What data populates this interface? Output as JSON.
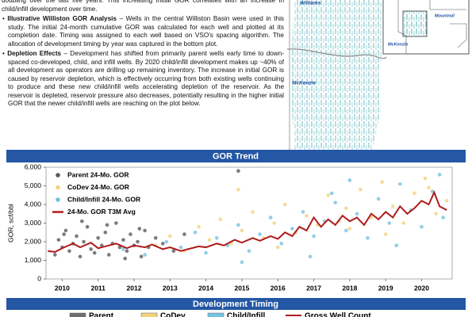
{
  "text": {
    "paragraphs": [
      {
        "body": "doubling over the last five years. This increasing initial GOR correlates with an increase in child/infill development over time."
      },
      {
        "heading": "Illustrative Williston GOR Analysis",
        "body": "– Wells in the central Williston Basin were used in this study. The initial 24-month cumulative GOR was calculated for each well and plotted at its completion date. Timing was assigned to each well based on VSO's spacing algorithm. The allocation of development timing by year was captured in the bottom plot."
      },
      {
        "heading": "Depletion Effects",
        "body": "– Development has shifted from primarily parent wells early time to down-spaced co-developed, child, and infill wells. By 2020 child/infill development makes up ~40% of all development as operators are drilling up remaining inventory. The increase in initial GOR is caused by reservoir depletion, which is effectively occurring from both existing wells continuing to produce and these new child/infill wells accelerating depletion of the reservoir. As the reservoir is depleted, reservoir pressure also decreases, potentially resulting in the higher initial GOR that the newer child/infill wells are reaching on the plot below."
      }
    ]
  },
  "map": {
    "labels": [
      "Williams",
      "McKenzie"
    ],
    "inset_labels": [
      "Mountrail",
      "McKenzie"
    ]
  },
  "chart_data": {
    "type": "scatter",
    "title": "GOR Trend",
    "y_label": "GOR, scf/bbl",
    "xlim": [
      2009.55,
      2020.85
    ],
    "xticks": [
      2010,
      2011,
      2012,
      2013,
      2014,
      2015,
      2016,
      2017,
      2018,
      2019,
      2020
    ],
    "ylim": [
      0,
      6000
    ],
    "yticks": [
      0,
      {
        "value": 1000,
        "label": "1,000"
      },
      {
        "value": 2000,
        "label": "2,000"
      },
      {
        "value": 3000,
        "label": "3,000"
      },
      {
        "value": 4000,
        "label": "4,000"
      },
      {
        "value": 5000,
        "label": "5,000"
      },
      {
        "value": 6000,
        "label": "6,000"
      }
    ],
    "grid": false,
    "legend": "upper-left",
    "series": [
      {
        "name": "Parent 24-Mo. GOR",
        "type": "scatter",
        "color": "#5a5a5a",
        "x": [
          2009.8,
          2009.9,
          2010.0,
          2010.1,
          2010.2,
          2010.3,
          2010.4,
          2010.5,
          2010.6,
          2010.7,
          2010.8,
          2010.9,
          2011.0,
          2011.1,
          2011.2,
          2011.3,
          2011.4,
          2011.5,
          2011.6,
          2011.7,
          2011.8,
          2011.9,
          2012.0,
          2012.1,
          2012.2,
          2012.3,
          2012.4,
          2012.6,
          2012.8,
          2013.1,
          2013.4,
          2010.05,
          2010.55,
          2011.25,
          2011.75,
          2012.15,
          2014.9
        ],
        "values": [
          1300,
          2100,
          1700,
          2600,
          1500,
          1900,
          2300,
          1200,
          2000,
          2800,
          1600,
          1400,
          2200,
          1800,
          2500,
          1300,
          1900,
          3000,
          1700,
          2100,
          1500,
          2400,
          1800,
          2000,
          1200,
          2600,
          1700,
          2200,
          1900,
          1500,
          2400,
          2400,
          3100,
          2900,
          1100,
          2700,
          5800
        ]
      },
      {
        "name": "CoDev 24-Mo. GOR",
        "type": "scatter",
        "color": "#f3d27e",
        "x": [
          2012.6,
          2013.0,
          2013.4,
          2013.8,
          2014.1,
          2014.4,
          2014.7,
          2015.0,
          2015.3,
          2015.6,
          2015.9,
          2016.2,
          2016.5,
          2016.8,
          2017.1,
          2017.4,
          2017.7,
          2018.0,
          2018.3,
          2018.6,
          2018.9,
          2019.2,
          2019.5,
          2019.8,
          2020.1,
          2020.4,
          2020.7,
          2014.9,
          2016.0,
          2017.9,
          2019.0,
          2020.2
        ],
        "values": [
          1800,
          2300,
          1500,
          2800,
          2100,
          3200,
          1900,
          2600,
          3600,
          2200,
          3000,
          4000,
          2500,
          3400,
          2900,
          4500,
          3100,
          2700,
          4800,
          3300,
          5200,
          3900,
          3000,
          4600,
          5400,
          3500,
          4200,
          4800,
          1700,
          3800,
          2400,
          4900
        ]
      },
      {
        "name": "Child/Infill 24-Mo. GOR",
        "type": "scatter",
        "color": "#74c3e0",
        "x": [
          2011.7,
          2012.3,
          2012.9,
          2013.3,
          2013.7,
          2014.0,
          2014.3,
          2014.6,
          2014.9,
          2015.2,
          2015.5,
          2015.8,
          2016.1,
          2016.4,
          2016.7,
          2017.0,
          2017.3,
          2017.6,
          2017.9,
          2018.2,
          2018.5,
          2018.8,
          2019.1,
          2019.4,
          2019.7,
          2020.0,
          2020.3,
          2020.6,
          2015.0,
          2016.9,
          2018.0,
          2019.3,
          2020.5,
          2017.5
        ],
        "values": [
          1600,
          1300,
          2000,
          1700,
          2500,
          1400,
          2200,
          1800,
          2900,
          1500,
          2400,
          3300,
          1900,
          2700,
          3600,
          2300,
          3100,
          4100,
          2600,
          3500,
          2200,
          4300,
          3000,
          5100,
          3700,
          2800,
          4700,
          3300,
          900,
          1200,
          5300,
          1800,
          5600,
          4600
        ]
      },
      {
        "name": "24-Mo. GOR T3M Avg",
        "type": "line",
        "color": "#b01c1c",
        "x": [
          2009.6,
          2009.8,
          2010.0,
          2010.3,
          2010.5,
          2010.8,
          2011.0,
          2011.3,
          2011.5,
          2011.8,
          2012.0,
          2012.3,
          2012.5,
          2012.8,
          2013.0,
          2013.3,
          2013.5,
          2013.8,
          2014.0,
          2014.3,
          2014.5,
          2014.8,
          2015.0,
          2015.3,
          2015.5,
          2015.8,
          2016.0,
          2016.2,
          2016.4,
          2016.6,
          2016.8,
          2017.0,
          2017.2,
          2017.4,
          2017.6,
          2017.8,
          2018.0,
          2018.2,
          2018.4,
          2018.6,
          2018.8,
          2019.0,
          2019.2,
          2019.4,
          2019.6,
          2019.8,
          2020.0,
          2020.2,
          2020.35,
          2020.5,
          2020.7
        ],
        "values": [
          1500,
          1450,
          1650,
          1900,
          1700,
          1950,
          1650,
          1800,
          1900,
          1650,
          1800,
          1700,
          1850,
          1600,
          1700,
          1500,
          1600,
          1750,
          1700,
          1900,
          1800,
          2100,
          1950,
          2200,
          2050,
          2300,
          2150,
          2500,
          2300,
          2800,
          2600,
          3300,
          2800,
          3200,
          2900,
          3400,
          3100,
          3300,
          2900,
          3500,
          3200,
          3600,
          3300,
          3900,
          3500,
          3800,
          4200,
          4000,
          4650,
          3900,
          3700
        ]
      }
    ]
  },
  "development_timing": {
    "title": "Development Timing",
    "legend": [
      {
        "name": "Parent",
        "color": "#6e6e6e"
      },
      {
        "name": "CoDev",
        "color": "#f3d27e"
      },
      {
        "name": "Child/Infill",
        "color": "#74c3e0"
      },
      {
        "name": "Gross Well Count",
        "color": "#b01c1c"
      }
    ]
  }
}
